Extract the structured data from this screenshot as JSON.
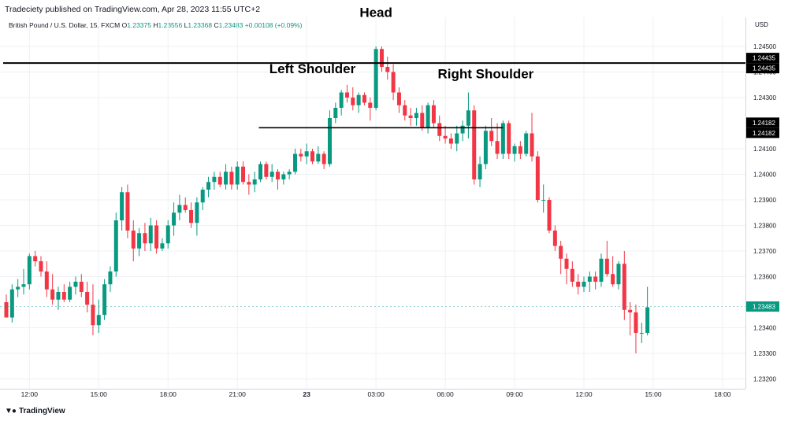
{
  "header": {
    "publisher": "Tradeciety published on TradingView.com, Apr 28, 2023 11:55 UTC+2",
    "symbol": "British Pound / U.S. Dollar, 15, FXCM",
    "ohlc": [
      {
        "label": "O",
        "value": "1.23375"
      },
      {
        "label": "H",
        "value": "1.23556"
      },
      {
        "label": "L",
        "value": "1.23368"
      },
      {
        "label": "C",
        "value": "1.23483"
      },
      {
        "label": "",
        "value": "+0.00108 (+0.09%)"
      }
    ]
  },
  "footer": {
    "brand": "TradingView",
    "logo_icon": "tradingview-logo-icon"
  },
  "colors": {
    "up": "#089981",
    "down": "#f23645",
    "grid": "#eef0f3",
    "annotation": "#000000",
    "price_line": "#26a69a",
    "axis_text": "#131722"
  },
  "chart_data": {
    "type": "candlestick",
    "currency": "USD",
    "ylim": [
      1.2318,
      1.2452
    ],
    "y_ticks": [
      "1.24500",
      "1.24400",
      "1.24300",
      "1.24100",
      "1.24000",
      "1.23900",
      "1.23800",
      "1.23700",
      "1.23600",
      "1.23400",
      "1.23300",
      "1.23200"
    ],
    "x_ticks": [
      "12:00",
      "15:00",
      "18:00",
      "21:00",
      "23",
      "03:00",
      "06:00",
      "09:00",
      "12:00",
      "15:00",
      "18:00"
    ],
    "x_tick_bars": [
      4,
      16,
      28,
      40,
      52,
      64,
      76,
      88,
      100,
      112,
      124
    ],
    "candles": [
      {
        "o": 1.235,
        "h": 1.2353,
        "l": 1.2344,
        "c": 1.2344
      },
      {
        "o": 1.2344,
        "h": 1.2357,
        "l": 1.2342,
        "c": 1.2355
      },
      {
        "o": 1.2355,
        "h": 1.2359,
        "l": 1.2352,
        "c": 1.2356
      },
      {
        "o": 1.2356,
        "h": 1.2363,
        "l": 1.2353,
        "c": 1.2357
      },
      {
        "o": 1.2357,
        "h": 1.2369,
        "l": 1.2355,
        "c": 1.2368
      },
      {
        "o": 1.2368,
        "h": 1.237,
        "l": 1.2364,
        "c": 1.2366
      },
      {
        "o": 1.2366,
        "h": 1.2368,
        "l": 1.236,
        "c": 1.2362
      },
      {
        "o": 1.2362,
        "h": 1.2366,
        "l": 1.2352,
        "c": 1.2355
      },
      {
        "o": 1.2355,
        "h": 1.2361,
        "l": 1.2349,
        "c": 1.2351
      },
      {
        "o": 1.2351,
        "h": 1.2356,
        "l": 1.2347,
        "c": 1.2354
      },
      {
        "o": 1.2354,
        "h": 1.2357,
        "l": 1.235,
        "c": 1.2351
      },
      {
        "o": 1.2351,
        "h": 1.2358,
        "l": 1.235,
        "c": 1.2356
      },
      {
        "o": 1.2356,
        "h": 1.236,
        "l": 1.2353,
        "c": 1.2358
      },
      {
        "o": 1.2358,
        "h": 1.2361,
        "l": 1.2352,
        "c": 1.2354
      },
      {
        "o": 1.2354,
        "h": 1.2358,
        "l": 1.2346,
        "c": 1.2349
      },
      {
        "o": 1.2349,
        "h": 1.2357,
        "l": 1.2337,
        "c": 1.2341
      },
      {
        "o": 1.2341,
        "h": 1.2351,
        "l": 1.2338,
        "c": 1.2345
      },
      {
        "o": 1.2345,
        "h": 1.2359,
        "l": 1.2343,
        "c": 1.2357
      },
      {
        "o": 1.2357,
        "h": 1.2364,
        "l": 1.2354,
        "c": 1.2362
      },
      {
        "o": 1.2362,
        "h": 1.2385,
        "l": 1.236,
        "c": 1.2382
      },
      {
        "o": 1.2382,
        "h": 1.2395,
        "l": 1.2378,
        "c": 1.2393
      },
      {
        "o": 1.2393,
        "h": 1.2396,
        "l": 1.2375,
        "c": 1.2378
      },
      {
        "o": 1.2378,
        "h": 1.2382,
        "l": 1.2366,
        "c": 1.2371
      },
      {
        "o": 1.2371,
        "h": 1.2379,
        "l": 1.2368,
        "c": 1.2377
      },
      {
        "o": 1.2377,
        "h": 1.2381,
        "l": 1.237,
        "c": 1.2373
      },
      {
        "o": 1.2373,
        "h": 1.2383,
        "l": 1.237,
        "c": 1.238
      },
      {
        "o": 1.238,
        "h": 1.2382,
        "l": 1.2369,
        "c": 1.2371
      },
      {
        "o": 1.2371,
        "h": 1.2375,
        "l": 1.237,
        "c": 1.2373
      },
      {
        "o": 1.2373,
        "h": 1.2382,
        "l": 1.2371,
        "c": 1.238
      },
      {
        "o": 1.238,
        "h": 1.2389,
        "l": 1.2376,
        "c": 1.2385
      },
      {
        "o": 1.2385,
        "h": 1.2392,
        "l": 1.2382,
        "c": 1.2388
      },
      {
        "o": 1.2388,
        "h": 1.2391,
        "l": 1.2385,
        "c": 1.2386
      },
      {
        "o": 1.2386,
        "h": 1.2389,
        "l": 1.2379,
        "c": 1.2381
      },
      {
        "o": 1.2381,
        "h": 1.2391,
        "l": 1.2376,
        "c": 1.2389
      },
      {
        "o": 1.2389,
        "h": 1.2395,
        "l": 1.2386,
        "c": 1.2394
      },
      {
        "o": 1.2394,
        "h": 1.2399,
        "l": 1.2391,
        "c": 1.2397
      },
      {
        "o": 1.2397,
        "h": 1.2401,
        "l": 1.2394,
        "c": 1.2399
      },
      {
        "o": 1.2399,
        "h": 1.2401,
        "l": 1.2395,
        "c": 1.2396
      },
      {
        "o": 1.2396,
        "h": 1.2404,
        "l": 1.2394,
        "c": 1.2401
      },
      {
        "o": 1.2401,
        "h": 1.2403,
        "l": 1.2394,
        "c": 1.2396
      },
      {
        "o": 1.2396,
        "h": 1.2405,
        "l": 1.2394,
        "c": 1.2403
      },
      {
        "o": 1.2403,
        "h": 1.2405,
        "l": 1.2396,
        "c": 1.2397
      },
      {
        "o": 1.2397,
        "h": 1.24,
        "l": 1.2392,
        "c": 1.2396
      },
      {
        "o": 1.2396,
        "h": 1.2401,
        "l": 1.2393,
        "c": 1.2398
      },
      {
        "o": 1.2398,
        "h": 1.2405,
        "l": 1.2397,
        "c": 1.2404
      },
      {
        "o": 1.2404,
        "h": 1.2405,
        "l": 1.2398,
        "c": 1.2399
      },
      {
        "o": 1.2399,
        "h": 1.2404,
        "l": 1.2397,
        "c": 1.2401
      },
      {
        "o": 1.2401,
        "h": 1.2402,
        "l": 1.2394,
        "c": 1.2398
      },
      {
        "o": 1.2398,
        "h": 1.2401,
        "l": 1.2396,
        "c": 1.24
      },
      {
        "o": 1.24,
        "h": 1.2402,
        "l": 1.2398,
        "c": 1.2401
      },
      {
        "o": 1.2401,
        "h": 1.241,
        "l": 1.24,
        "c": 1.2408
      },
      {
        "o": 1.2408,
        "h": 1.241,
        "l": 1.2405,
        "c": 1.2407
      },
      {
        "o": 1.2407,
        "h": 1.2412,
        "l": 1.2404,
        "c": 1.2409
      },
      {
        "o": 1.2409,
        "h": 1.241,
        "l": 1.2404,
        "c": 1.2405
      },
      {
        "o": 1.2405,
        "h": 1.2411,
        "l": 1.2404,
        "c": 1.2408
      },
      {
        "o": 1.2408,
        "h": 1.2409,
        "l": 1.2402,
        "c": 1.2404
      },
      {
        "o": 1.2404,
        "h": 1.2425,
        "l": 1.2403,
        "c": 1.2422
      },
      {
        "o": 1.2422,
        "h": 1.2428,
        "l": 1.242,
        "c": 1.2426
      },
      {
        "o": 1.2426,
        "h": 1.2433,
        "l": 1.2423,
        "c": 1.2432
      },
      {
        "o": 1.2432,
        "h": 1.2435,
        "l": 1.2428,
        "c": 1.243
      },
      {
        "o": 1.243,
        "h": 1.2434,
        "l": 1.2425,
        "c": 1.2427
      },
      {
        "o": 1.2427,
        "h": 1.2432,
        "l": 1.2424,
        "c": 1.2431
      },
      {
        "o": 1.2431,
        "h": 1.2432,
        "l": 1.2427,
        "c": 1.2428
      },
      {
        "o": 1.2428,
        "h": 1.243,
        "l": 1.2421,
        "c": 1.2426
      },
      {
        "o": 1.2426,
        "h": 1.245,
        "l": 1.2425,
        "c": 1.2449
      },
      {
        "o": 1.2449,
        "h": 1.245,
        "l": 1.244,
        "c": 1.2442
      },
      {
        "o": 1.2442,
        "h": 1.2446,
        "l": 1.2437,
        "c": 1.244
      },
      {
        "o": 1.244,
        "h": 1.2443,
        "l": 1.2429,
        "c": 1.2432
      },
      {
        "o": 1.2432,
        "h": 1.2434,
        "l": 1.2424,
        "c": 1.2427
      },
      {
        "o": 1.2427,
        "h": 1.2429,
        "l": 1.2421,
        "c": 1.2423
      },
      {
        "o": 1.2423,
        "h": 1.2426,
        "l": 1.2419,
        "c": 1.2422
      },
      {
        "o": 1.2422,
        "h": 1.2426,
        "l": 1.2419,
        "c": 1.2424
      },
      {
        "o": 1.2424,
        "h": 1.2427,
        "l": 1.2417,
        "c": 1.2418
      },
      {
        "o": 1.2418,
        "h": 1.2428,
        "l": 1.2416,
        "c": 1.2427
      },
      {
        "o": 1.2427,
        "h": 1.2429,
        "l": 1.2418,
        "c": 1.242
      },
      {
        "o": 1.242,
        "h": 1.2423,
        "l": 1.2413,
        "c": 1.2415
      },
      {
        "o": 1.2415,
        "h": 1.2419,
        "l": 1.2412,
        "c": 1.2414
      },
      {
        "o": 1.2414,
        "h": 1.2416,
        "l": 1.241,
        "c": 1.2412
      },
      {
        "o": 1.2412,
        "h": 1.2419,
        "l": 1.2409,
        "c": 1.2416
      },
      {
        "o": 1.2416,
        "h": 1.2421,
        "l": 1.2413,
        "c": 1.2419
      },
      {
        "o": 1.2419,
        "h": 1.2432,
        "l": 1.2414,
        "c": 1.2425
      },
      {
        "o": 1.2425,
        "h": 1.2427,
        "l": 1.2396,
        "c": 1.2398
      },
      {
        "o": 1.2398,
        "h": 1.2407,
        "l": 1.2395,
        "c": 1.2404
      },
      {
        "o": 1.2404,
        "h": 1.2419,
        "l": 1.2402,
        "c": 1.2417
      },
      {
        "o": 1.2417,
        "h": 1.2422,
        "l": 1.2411,
        "c": 1.2413
      },
      {
        "o": 1.2413,
        "h": 1.242,
        "l": 1.2406,
        "c": 1.2408
      },
      {
        "o": 1.2408,
        "h": 1.2421,
        "l": 1.2406,
        "c": 1.242
      },
      {
        "o": 1.242,
        "h": 1.2421,
        "l": 1.2406,
        "c": 1.2408
      },
      {
        "o": 1.2408,
        "h": 1.2412,
        "l": 1.2405,
        "c": 1.2411
      },
      {
        "o": 1.2411,
        "h": 1.2413,
        "l": 1.2406,
        "c": 1.2408
      },
      {
        "o": 1.2408,
        "h": 1.2417,
        "l": 1.2407,
        "c": 1.2416
      },
      {
        "o": 1.2416,
        "h": 1.2424,
        "l": 1.2405,
        "c": 1.2407
      },
      {
        "o": 1.2407,
        "h": 1.2409,
        "l": 1.2389,
        "c": 1.239
      },
      {
        "o": 1.239,
        "h": 1.2396,
        "l": 1.2385,
        "c": 1.239
      },
      {
        "o": 1.239,
        "h": 1.2391,
        "l": 1.2377,
        "c": 1.2378
      },
      {
        "o": 1.2378,
        "h": 1.238,
        "l": 1.237,
        "c": 1.2372
      },
      {
        "o": 1.2372,
        "h": 1.2374,
        "l": 1.2361,
        "c": 1.2367
      },
      {
        "o": 1.2367,
        "h": 1.2369,
        "l": 1.2357,
        "c": 1.2363
      },
      {
        "o": 1.2363,
        "h": 1.2366,
        "l": 1.2356,
        "c": 1.2358
      },
      {
        "o": 1.2358,
        "h": 1.2361,
        "l": 1.2353,
        "c": 1.2356
      },
      {
        "o": 1.2356,
        "h": 1.236,
        "l": 1.2354,
        "c": 1.2358
      },
      {
        "o": 1.2358,
        "h": 1.2362,
        "l": 1.2354,
        "c": 1.236
      },
      {
        "o": 1.236,
        "h": 1.2362,
        "l": 1.2355,
        "c": 1.2358
      },
      {
        "o": 1.2358,
        "h": 1.2369,
        "l": 1.2356,
        "c": 1.2367
      },
      {
        "o": 1.2367,
        "h": 1.2374,
        "l": 1.236,
        "c": 1.2361
      },
      {
        "o": 1.2361,
        "h": 1.2368,
        "l": 1.2356,
        "c": 1.2357
      },
      {
        "o": 1.2357,
        "h": 1.2366,
        "l": 1.2355,
        "c": 1.2365
      },
      {
        "o": 1.2365,
        "h": 1.237,
        "l": 1.2343,
        "c": 1.2347
      },
      {
        "o": 1.2347,
        "h": 1.235,
        "l": 1.2337,
        "c": 1.2346
      },
      {
        "o": 1.2346,
        "h": 1.2349,
        "l": 1.233,
        "c": 1.2338
      },
      {
        "o": 1.2338,
        "h": 1.2342,
        "l": 1.2334,
        "c": 1.2338
      },
      {
        "o": 1.2338,
        "h": 1.2356,
        "l": 1.2337,
        "c": 1.2348
      }
    ],
    "horizontal_lines": [
      {
        "price": 1.24435,
        "label": "1.24435",
        "bar_from": 0,
        "bar_to": 131
      },
      {
        "price": 1.24182,
        "label": "1.24182",
        "bar_from": 44,
        "bar_to": 86
      }
    ],
    "current_price": {
      "price": 1.23483,
      "label": "1.23483"
    },
    "annotations": [
      {
        "text": "Head",
        "bar": 64,
        "price": 1.24615
      },
      {
        "text": "Left Shoulder",
        "bar": 53,
        "price": 1.24395
      },
      {
        "text": "Right Shoulder",
        "bar": 83,
        "price": 1.24375
      }
    ]
  }
}
